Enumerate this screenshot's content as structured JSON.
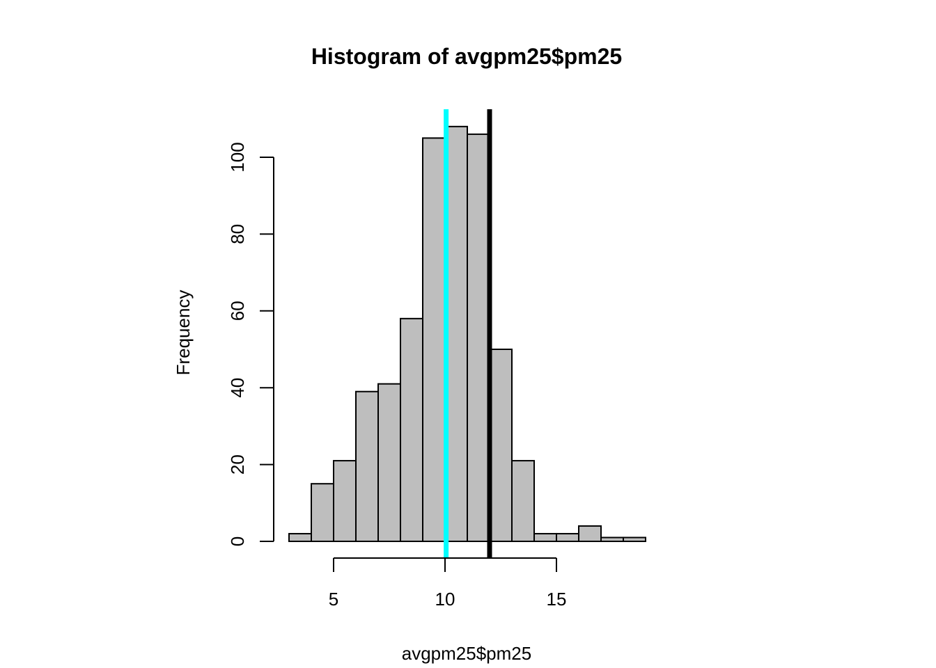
{
  "chart_data": {
    "type": "bar",
    "title": "Histogram of avgpm25$pm25",
    "xlabel": "avgpm25$pm25",
    "ylabel": "Frequency",
    "bin_edges": [
      3,
      4,
      5,
      6,
      7,
      8,
      9,
      10,
      11,
      12,
      13,
      14,
      15,
      16,
      17,
      18,
      19
    ],
    "values": [
      2,
      15,
      21,
      39,
      41,
      58,
      105,
      108,
      106,
      50,
      21,
      2,
      2,
      4,
      1,
      1
    ],
    "xlim": [
      3,
      19
    ],
    "ylim": [
      0,
      108
    ],
    "x_ticks": [
      5,
      10,
      15
    ],
    "y_ticks": [
      0,
      20,
      40,
      60,
      80,
      100
    ],
    "bar_color": "#bebebe",
    "vertical_lines": [
      {
        "x": 10.05,
        "color": "#00ffff"
      },
      {
        "x": 12,
        "color": "#000000"
      }
    ],
    "grid": false,
    "legend": "none"
  }
}
